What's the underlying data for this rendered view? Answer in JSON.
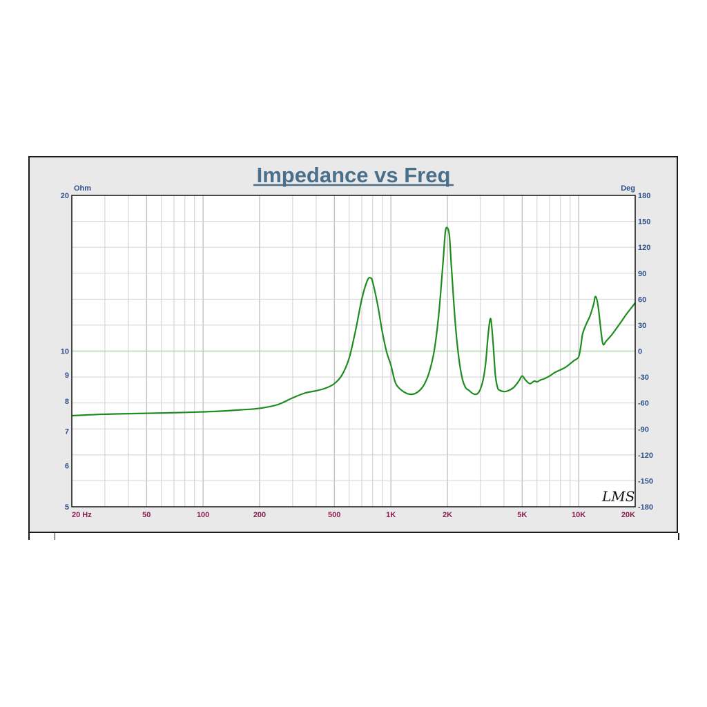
{
  "chart_data": {
    "type": "line",
    "title": "Impedance vs Freq",
    "x_scale": "log",
    "y_scale": "log",
    "xlim": [
      20,
      20000
    ],
    "ylim": [
      5,
      20
    ],
    "y2lim": [
      -180,
      180
    ],
    "ylabel": "Ohm",
    "y2label": "Deg",
    "grid": true,
    "watermark": "LMS",
    "x_ticks": [
      {
        "value": 20,
        "label": "20 Hz"
      },
      {
        "value": 50,
        "label": "50"
      },
      {
        "value": 100,
        "label": "100"
      },
      {
        "value": 200,
        "label": "200"
      },
      {
        "value": 500,
        "label": "500"
      },
      {
        "value": 1000,
        "label": "1K"
      },
      {
        "value": 2000,
        "label": "2K"
      },
      {
        "value": 5000,
        "label": "5K"
      },
      {
        "value": 10000,
        "label": "10K"
      },
      {
        "value": 20000,
        "label": "20K"
      }
    ],
    "y_ticks": [
      {
        "value": 5,
        "label": "5"
      },
      {
        "value": 6,
        "label": "6"
      },
      {
        "value": 7,
        "label": "7"
      },
      {
        "value": 8,
        "label": "8"
      },
      {
        "value": 9,
        "label": "9"
      },
      {
        "value": 10,
        "label": "10"
      },
      {
        "value": 20,
        "label": "20"
      }
    ],
    "y2_ticks": [
      {
        "value": 180,
        "label": "180"
      },
      {
        "value": 150,
        "label": "150"
      },
      {
        "value": 120,
        "label": "120"
      },
      {
        "value": 90,
        "label": "90"
      },
      {
        "value": 60,
        "label": "60"
      },
      {
        "value": 30,
        "label": "30"
      },
      {
        "value": 0,
        "label": "0"
      },
      {
        "value": -30,
        "label": "-30"
      },
      {
        "value": -60,
        "label": "-60"
      },
      {
        "value": -90,
        "label": "-90"
      },
      {
        "value": -120,
        "label": "-120"
      },
      {
        "value": -150,
        "label": "-150"
      },
      {
        "value": -180,
        "label": "-180"
      }
    ],
    "colors": {
      "impedance": "#1f8c1f",
      "reference_line": "#a8d8a8",
      "grid": "#bbbbbb",
      "plot_bg": "#ffffff",
      "frame_bg": "#e9e9e9"
    },
    "reference_line_value": 10,
    "series": [
      {
        "x": [
          20,
          30,
          50,
          70,
          100,
          130,
          160,
          200,
          250,
          300,
          350,
          400,
          450,
          500,
          550,
          600,
          650,
          700,
          750,
          780,
          800,
          850,
          900,
          950,
          1000,
          1050,
          1100,
          1200,
          1300,
          1400,
          1500,
          1600,
          1700,
          1800,
          1900,
          1950,
          2000,
          2050,
          2100,
          2200,
          2300,
          2400,
          2500,
          2600,
          2700,
          2800,
          2900,
          3000,
          3100,
          3200,
          3300,
          3400,
          3500,
          3600,
          3700,
          3800,
          4000,
          4200,
          4500,
          4800,
          5000,
          5200,
          5500,
          5800,
          6000,
          6300,
          6600,
          7000,
          7500,
          8000,
          8500,
          9000,
          9500,
          10000,
          10300,
          10500,
          11000,
          11500,
          12000,
          12300,
          12700,
          13200,
          13500,
          14000,
          15000,
          16000,
          17000,
          18000,
          19000,
          20000
        ],
        "values": [
          7.5,
          7.55,
          7.58,
          7.6,
          7.63,
          7.66,
          7.7,
          7.75,
          7.88,
          8.12,
          8.3,
          8.38,
          8.48,
          8.65,
          9.0,
          9.7,
          11.0,
          12.6,
          13.7,
          13.85,
          13.6,
          12.3,
          10.9,
          9.95,
          9.4,
          8.75,
          8.5,
          8.3,
          8.25,
          8.35,
          8.6,
          9.1,
          10.0,
          11.8,
          15.0,
          17.0,
          17.3,
          16.7,
          14.6,
          11.4,
          9.7,
          8.85,
          8.5,
          8.4,
          8.3,
          8.25,
          8.28,
          8.45,
          8.8,
          9.5,
          10.8,
          11.55,
          10.4,
          9.0,
          8.5,
          8.4,
          8.35,
          8.38,
          8.5,
          8.75,
          8.95,
          8.8,
          8.65,
          8.75,
          8.72,
          8.8,
          8.85,
          8.95,
          9.1,
          9.2,
          9.3,
          9.45,
          9.6,
          9.75,
          10.3,
          10.8,
          11.3,
          11.7,
          12.3,
          12.75,
          12.2,
          10.8,
          10.3,
          10.45,
          10.75,
          11.1,
          11.45,
          11.8,
          12.1,
          12.4
        ]
      }
    ]
  }
}
